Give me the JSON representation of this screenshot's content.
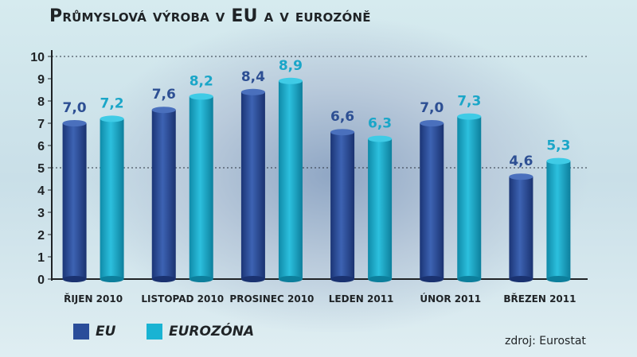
{
  "chart_data": {
    "type": "bar",
    "title": "Průmyslová výroba v EU a v eurozóně",
    "categories": [
      "ŘIJEN 2010",
      "LISTOPAD 2010",
      "PROSINEC 2010",
      "LEDEN 2011",
      "ÚNOR 2011",
      "BŘEZEN 2011"
    ],
    "series": [
      {
        "name": "EU",
        "color": "#2a4d9a",
        "values": [
          7.0,
          7.6,
          8.4,
          6.6,
          7.0,
          4.6
        ],
        "labels": [
          "7,0",
          "7,6",
          "8,4",
          "6,6",
          "7,0",
          "4,6"
        ]
      },
      {
        "name": "EUROZÓNA",
        "color": "#19a9c9",
        "values": [
          7.2,
          8.2,
          8.9,
          6.3,
          7.3,
          5.3
        ],
        "labels": [
          "7,2",
          "8,2",
          "8,9",
          "6,3",
          "7,3",
          "5,3"
        ]
      }
    ],
    "ylim": [
      0,
      10
    ],
    "yticks": [
      0,
      1,
      2,
      3,
      4,
      5,
      6,
      7,
      8,
      9,
      10
    ],
    "gridlines": [
      5,
      10
    ],
    "legend_position": "bottom-left",
    "label_colors": {
      "EU": "#2d4f93",
      "EUROZÓNA": "#1aa6c8"
    }
  },
  "source": "zdroj: Eurostat"
}
